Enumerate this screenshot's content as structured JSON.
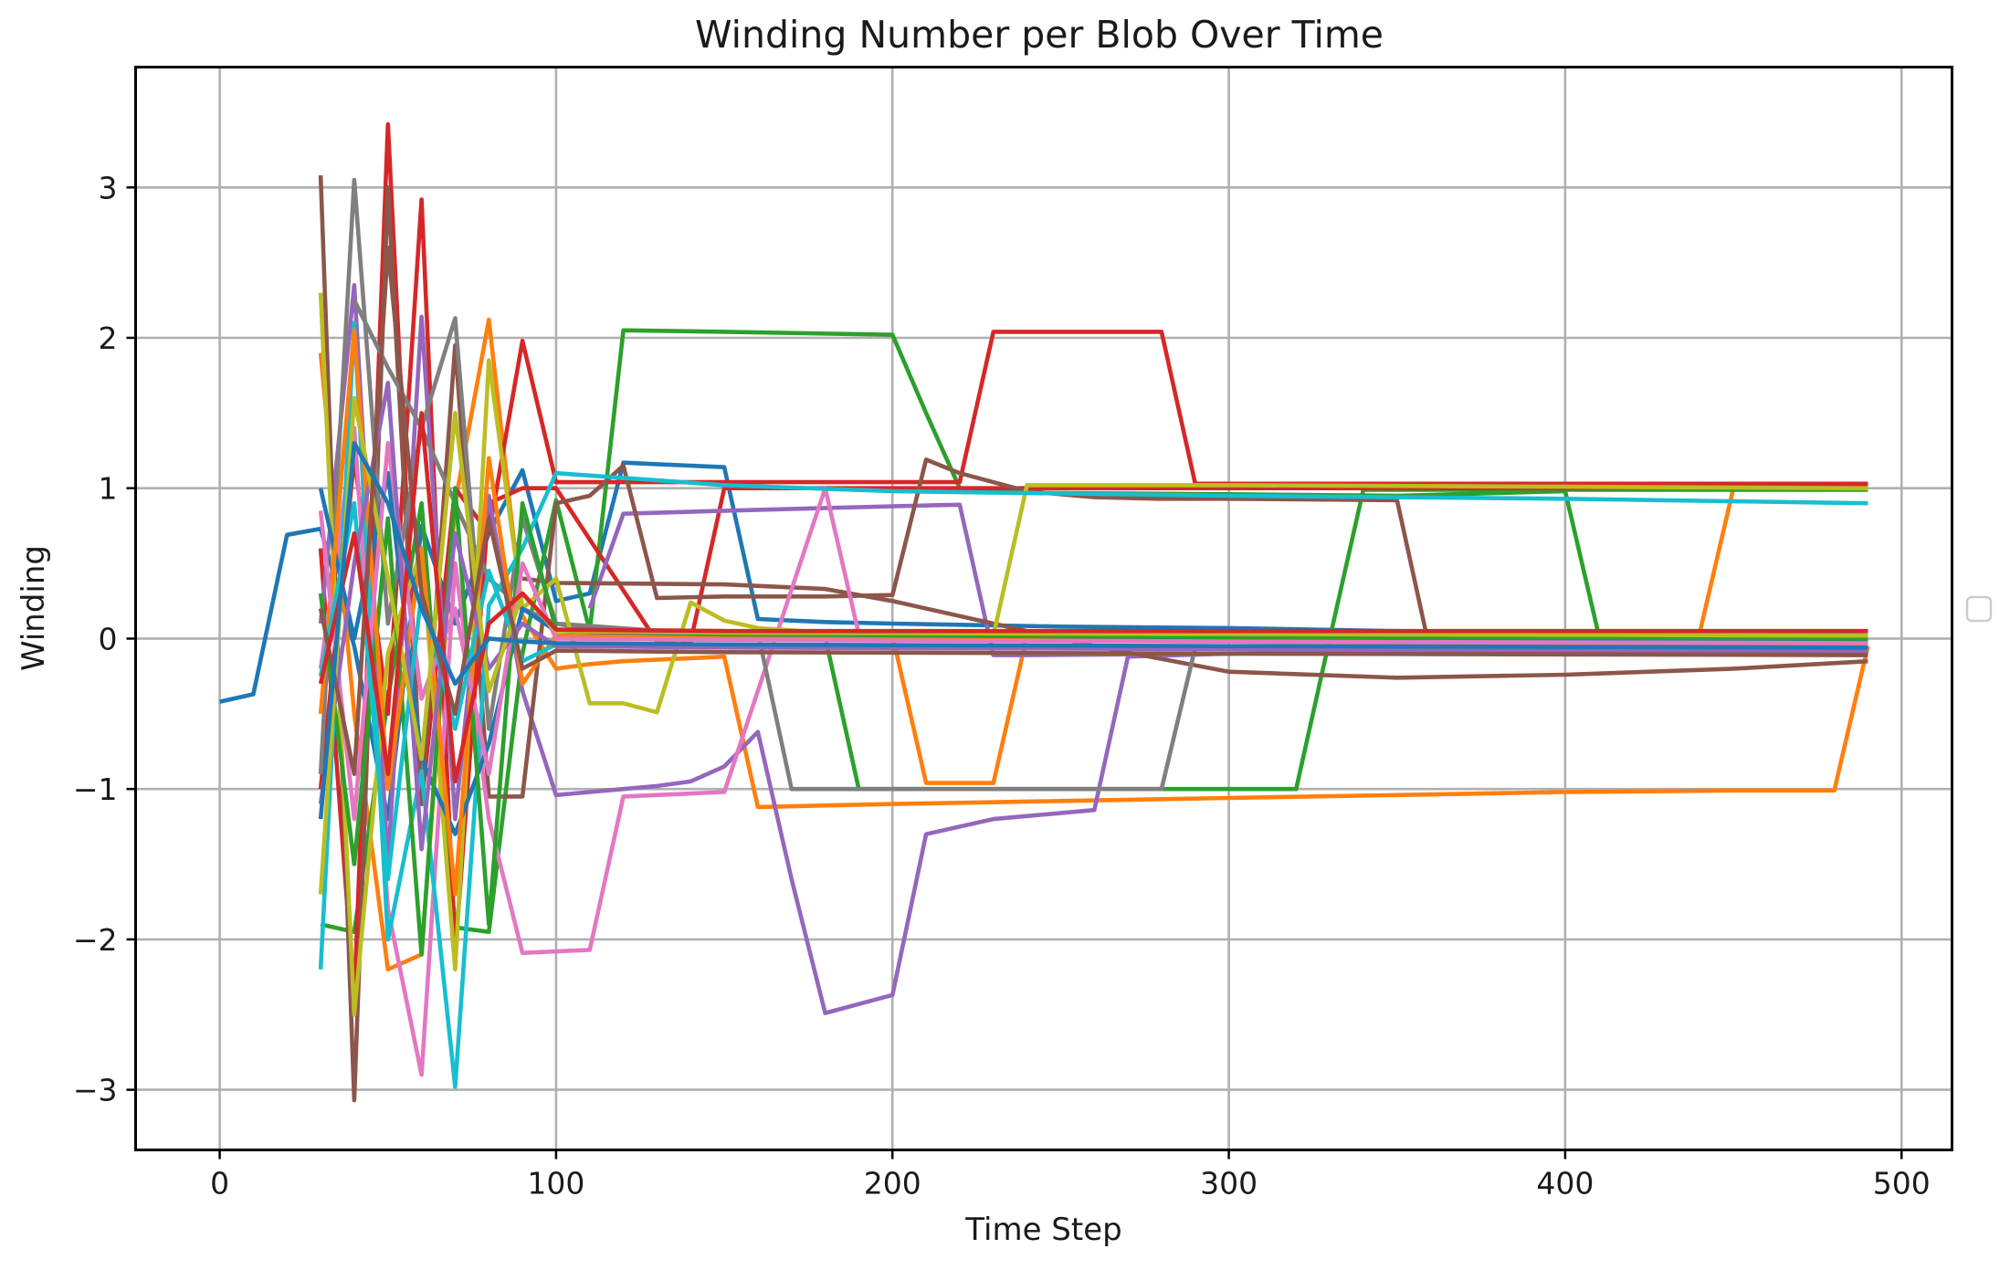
{
  "chart_data": {
    "type": "line",
    "title": "Winding Number per Blob Over Time",
    "xlabel": "Time Step",
    "ylabel": "Winding",
    "xlim": [
      -25,
      515
    ],
    "ylim": [
      -3.4,
      3.8
    ],
    "xticks": [
      0,
      100,
      200,
      300,
      400,
      500
    ],
    "yticks": [
      -3,
      -2,
      -1,
      0,
      1,
      2,
      3
    ],
    "xtick_labels": [
      "0",
      "100",
      "200",
      "300",
      "400",
      "500"
    ],
    "ytick_labels": [
      "−3",
      "−2",
      "−1",
      "0",
      "1",
      "2",
      "3"
    ],
    "grid": true,
    "legend": "empty legend box at right-center",
    "palette": [
      "#1f77b4",
      "#ff7f0e",
      "#2ca02c",
      "#d62728",
      "#9467bd",
      "#8c564b",
      "#e377c2",
      "#7f7f7f",
      "#bcbd22",
      "#17becf"
    ],
    "series": [
      {
        "color": "#1f77b4",
        "x": [
          0,
          10,
          20,
          30,
          40,
          50,
          60,
          70,
          80,
          90,
          100,
          110,
          120,
          130,
          140,
          150,
          160,
          170,
          180,
          200,
          250,
          300,
          350,
          400,
          450,
          490
        ],
        "y": [
          -0.42,
          -0.37,
          0.69,
          0.73,
          -0.05,
          -1.2,
          0.75,
          0.1,
          0.7,
          1.12,
          0.25,
          0.3,
          1.17,
          1.16,
          1.15,
          1.14,
          0.13,
          0.12,
          0.11,
          0.1,
          0.08,
          0.07,
          0.05,
          0.04,
          0.03,
          0.02
        ]
      },
      {
        "color": "#ff7f0e",
        "x": [
          30,
          40,
          50,
          60,
          70,
          80,
          90,
          100,
          110,
          120,
          130,
          140,
          150,
          160,
          200,
          250,
          300,
          350,
          400,
          450,
          480,
          490
        ],
        "y": [
          1.9,
          -0.5,
          -2.2,
          -2.1,
          0.9,
          2.12,
          0.15,
          -0.2,
          -0.17,
          -0.15,
          -0.14,
          -0.13,
          -0.12,
          -1.12,
          -1.1,
          -1.08,
          -1.06,
          -1.04,
          -1.02,
          -1.01,
          -1.01,
          -0.05
        ]
      },
      {
        "color": "#ff7f0e",
        "x": [
          150,
          160,
          200,
          210,
          220,
          230,
          240,
          300,
          350,
          400,
          430,
          440,
          450,
          490
        ],
        "y": [
          0.02,
          0.02,
          0.02,
          -0.96,
          -0.96,
          -0.96,
          0.02,
          0.03,
          0.03,
          0.03,
          0.03,
          0.04,
          1.0,
          1.0
        ]
      },
      {
        "color": "#2ca02c",
        "x": [
          30,
          40,
          50,
          60,
          70,
          80,
          90,
          100,
          110,
          120,
          150,
          200,
          210,
          220,
          230,
          240,
          300,
          350,
          400,
          410,
          450,
          490
        ],
        "y": [
          -1.9,
          -1.95,
          -0.4,
          0.9,
          -1.92,
          -1.95,
          -0.1,
          0.92,
          0.05,
          2.05,
          2.04,
          2.02,
          1.5,
          1.0,
          0.98,
          0.97,
          0.96,
          0.95,
          0.98,
          0.02,
          0.01,
          0.0
        ]
      },
      {
        "color": "#2ca02c",
        "x": [
          110,
          150,
          170,
          180,
          190,
          250,
          300,
          320,
          330,
          340,
          400,
          450,
          490
        ],
        "y": [
          0.03,
          0.02,
          0.01,
          0.01,
          -1.0,
          -1.0,
          -1.0,
          -1.0,
          0.0,
          0.99,
          0.99,
          0.99,
          0.99
        ]
      },
      {
        "color": "#d62728",
        "x": [
          30,
          40,
          50,
          60,
          70,
          80,
          90,
          100,
          150,
          200,
          220,
          230,
          260,
          280,
          290,
          300,
          400,
          490
        ],
        "y": [
          0.6,
          -2.4,
          3.42,
          -1.1,
          1.0,
          0.7,
          1.98,
          1.04,
          1.04,
          1.04,
          1.04,
          2.04,
          2.04,
          2.04,
          1.03,
          1.03,
          1.03,
          1.03
        ]
      },
      {
        "color": "#d62728",
        "x": [
          30,
          40,
          50,
          60,
          70,
          80,
          90,
          100,
          130,
          140,
          150,
          160,
          200,
          300,
          400,
          490
        ],
        "y": [
          -1.0,
          1.2,
          -0.5,
          2.92,
          -2.1,
          0.9,
          1.0,
          1.0,
          -0.02,
          -0.02,
          1.0,
          1.0,
          1.0,
          1.0,
          1.0,
          1.02
        ]
      },
      {
        "color": "#9467bd",
        "x": [
          30,
          40,
          50,
          60,
          70,
          80,
          90,
          100,
          110,
          120,
          130,
          140,
          150,
          160,
          170,
          180,
          200,
          210,
          230,
          260,
          270,
          300,
          350,
          400,
          490
        ],
        "y": [
          0.1,
          2.35,
          -1.5,
          2.14,
          -1.2,
          0.95,
          -0.35,
          -1.04,
          -1.02,
          -1.0,
          -0.98,
          -0.95,
          -0.85,
          -0.62,
          -1.6,
          -2.49,
          -2.37,
          -1.3,
          -1.2,
          -1.14,
          -0.12,
          -0.1,
          -0.08,
          -0.06,
          -0.05
        ]
      },
      {
        "color": "#9467bd",
        "x": [
          110,
          120,
          150,
          200,
          220,
          230,
          240,
          300,
          400,
          490
        ],
        "y": [
          0.2,
          0.83,
          0.85,
          0.88,
          0.89,
          -0.11,
          -0.11,
          -0.1,
          -0.09,
          -0.08
        ]
      },
      {
        "color": "#8c564b",
        "x": [
          30,
          40,
          50,
          60,
          70,
          80,
          90,
          100,
          110,
          120,
          130,
          150,
          180,
          200,
          210,
          220,
          240,
          260,
          280,
          300,
          350,
          360,
          400,
          450,
          490
        ],
        "y": [
          3.08,
          -3.07,
          3.0,
          -1.1,
          1.95,
          -1.05,
          -1.05,
          0.9,
          0.95,
          1.15,
          0.27,
          0.28,
          0.28,
          0.29,
          1.19,
          1.1,
          0.98,
          0.94,
          0.93,
          0.93,
          0.92,
          -0.1,
          -0.1,
          -0.1,
          -0.1
        ]
      },
      {
        "color": "#8c564b",
        "x": [
          90,
          100,
          150,
          180,
          200,
          230,
          260,
          300,
          350,
          400,
          450,
          490
        ],
        "y": [
          0.4,
          0.37,
          0.36,
          0.33,
          0.25,
          0.1,
          -0.05,
          -0.22,
          -0.26,
          -0.24,
          -0.2,
          -0.15
        ]
      },
      {
        "color": "#e377c2",
        "x": [
          30,
          40,
          50,
          60,
          70,
          80,
          90,
          100,
          110,
          120,
          150,
          180,
          190,
          200,
          300,
          400,
          490
        ],
        "y": [
          -0.2,
          1.4,
          -1.8,
          -2.9,
          0.5,
          -1.2,
          -2.09,
          -2.08,
          -2.07,
          -1.05,
          -1.02,
          1.0,
          0.03,
          0.03,
          0.04,
          0.04,
          0.05
        ]
      },
      {
        "color": "#7f7f7f",
        "x": [
          30,
          40,
          50,
          60,
          70,
          80,
          90,
          100,
          110,
          150,
          160,
          170,
          180,
          200,
          280,
          290,
          300,
          400,
          490
        ],
        "y": [
          -0.9,
          3.05,
          0.1,
          1.4,
          2.13,
          -0.6,
          0.8,
          0.1,
          0.06,
          0.05,
          0.04,
          -1.0,
          -1.0,
          -1.0,
          -1.0,
          -0.06,
          -0.06,
          -0.06,
          -0.06
        ]
      },
      {
        "color": "#7f7f7f",
        "x": [
          40,
          50,
          60,
          70,
          80,
          90,
          100,
          150,
          200,
          300,
          400,
          490
        ],
        "y": [
          2.25,
          1.8,
          1.4,
          0.9,
          0.4,
          0.2,
          0.1,
          0.02,
          0.0,
          -0.02,
          -0.03,
          -0.03
        ]
      },
      {
        "color": "#bcbd22",
        "x": [
          30,
          40,
          50,
          60,
          70,
          80,
          90,
          100,
          110,
          120,
          130,
          140,
          150,
          160,
          180,
          200,
          230,
          240,
          300,
          400,
          490
        ],
        "y": [
          2.3,
          -2.5,
          -0.1,
          0.6,
          -2.2,
          1.85,
          0.2,
          0.4,
          -0.43,
          -0.43,
          -0.49,
          0.24,
          0.12,
          0.07,
          0.04,
          0.03,
          0.02,
          1.02,
          1.02,
          1.01,
          1.0
        ]
      },
      {
        "color": "#17becf",
        "x": [
          30,
          40,
          50,
          60,
          70,
          80,
          90,
          100,
          150,
          200,
          300,
          400,
          490
        ],
        "y": [
          -2.2,
          2.1,
          -2.0,
          -0.88,
          -2.98,
          0.22,
          0.6,
          1.1,
          1.02,
          0.98,
          0.95,
          0.93,
          0.9
        ]
      },
      {
        "color": "#1f77b4",
        "x": [
          30,
          40,
          50,
          60,
          70,
          80,
          90,
          100,
          150,
          250,
          490
        ],
        "y": [
          1.0,
          0.0,
          1.1,
          -0.8,
          -1.3,
          -0.7,
          0.2,
          0.05,
          0.02,
          0.0,
          -0.02
        ]
      },
      {
        "color": "#2ca02c",
        "x": [
          30,
          40,
          50,
          60,
          70,
          80,
          90,
          100,
          150,
          300,
          490
        ],
        "y": [
          0.3,
          -1.5,
          0.8,
          -2.1,
          1.0,
          -1.9,
          0.9,
          0.06,
          0.03,
          0.01,
          0.0
        ]
      },
      {
        "color": "#ff7f0e",
        "x": [
          30,
          40,
          50,
          60,
          70,
          80,
          90,
          100,
          150,
          300,
          490
        ],
        "y": [
          -0.5,
          2.05,
          -1.0,
          0.6,
          -1.7,
          1.2,
          -0.3,
          0.02,
          0.0,
          -0.02,
          -0.04
        ]
      },
      {
        "color": "#e377c2",
        "x": [
          30,
          40,
          50,
          60,
          70,
          80,
          90,
          100,
          150,
          300,
          490
        ],
        "y": [
          0.85,
          -1.2,
          1.3,
          -0.4,
          0.2,
          -0.9,
          0.5,
          0.0,
          -0.01,
          -0.02,
          -0.03
        ]
      },
      {
        "color": "#17becf",
        "x": [
          30,
          40,
          50,
          60,
          70,
          80,
          90,
          100,
          150,
          300,
          490
        ],
        "y": [
          -0.25,
          0.9,
          -1.6,
          0.3,
          -0.6,
          0.45,
          -0.15,
          -0.04,
          -0.05,
          -0.06,
          -0.07
        ]
      },
      {
        "color": "#9467bd",
        "x": [
          30,
          40,
          50,
          60,
          70,
          80,
          90,
          100,
          150,
          300,
          490
        ],
        "y": [
          -1.1,
          0.5,
          1.7,
          -1.4,
          0.7,
          -0.2,
          0.1,
          -0.05,
          -0.06,
          -0.07,
          -0.08
        ]
      },
      {
        "color": "#bcbd22",
        "x": [
          30,
          40,
          50,
          60,
          70,
          80,
          90,
          100,
          150,
          300,
          490
        ],
        "y": [
          -1.7,
          1.6,
          0.4,
          -0.8,
          1.5,
          -0.35,
          0.3,
          0.05,
          0.04,
          0.03,
          0.02
        ]
      },
      {
        "color": "#8c564b",
        "x": [
          30,
          40,
          50,
          60,
          70,
          80,
          90,
          100,
          150,
          300,
          490
        ],
        "y": [
          0.2,
          -0.9,
          2.6,
          0.3,
          -0.5,
          0.8,
          -0.2,
          -0.08,
          -0.09,
          -0.1,
          -0.11
        ]
      },
      {
        "color": "#d62728",
        "x": [
          30,
          40,
          50,
          60,
          70,
          80,
          90,
          100,
          150,
          300,
          490
        ],
        "y": [
          -0.3,
          0.7,
          -0.9,
          1.5,
          -0.95,
          0.1,
          0.3,
          0.06,
          0.05,
          0.05,
          0.05
        ]
      },
      {
        "color": "#1f77b4",
        "x": [
          30,
          40,
          50,
          60,
          70,
          80,
          90,
          100,
          150,
          300,
          490
        ],
        "y": [
          -1.2,
          1.3,
          0.9,
          0.2,
          -0.3,
          0.0,
          -0.02,
          -0.03,
          -0.04,
          -0.05,
          -0.06
        ]
      }
    ]
  }
}
